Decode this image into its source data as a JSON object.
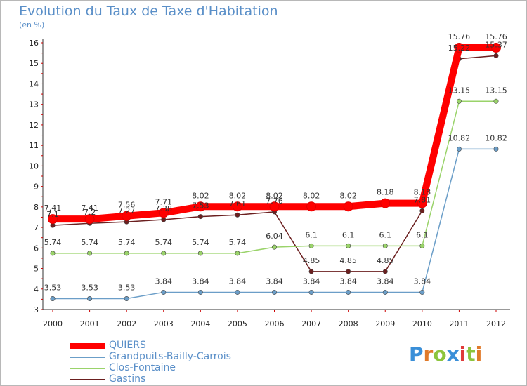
{
  "title": "Evolution du Taux de Taxe d'Habitation",
  "subtitle": "(en %)",
  "logo": {
    "text": "Proxiti",
    "letters": [
      "P",
      "r",
      "o",
      "x",
      "i",
      "t",
      "i"
    ],
    "colors": [
      "#3a8fd8",
      "#e07a2a",
      "#8cc43c",
      "#3a8fd8",
      "#e03a3a",
      "#8cc43c",
      "#e07a2a"
    ]
  },
  "chart_data": {
    "type": "line",
    "title": "Evolution du Taux de Taxe d'Habitation",
    "ylabel": "(en %)",
    "xlabel": "",
    "ylim": [
      3,
      16
    ],
    "yticks": [
      "3",
      "4",
      "5",
      "6",
      "7",
      "8",
      "9",
      "10",
      "11",
      "12",
      "13",
      "14",
      "15",
      "16"
    ],
    "categories": [
      "2000",
      "2001",
      "2002",
      "2003",
      "2004",
      "2005",
      "2006",
      "2007",
      "2008",
      "2009",
      "2010",
      "2011",
      "2012"
    ],
    "series": [
      {
        "name": "QUIERS",
        "color": "#ff0000",
        "values": [
          7.41,
          7.41,
          7.56,
          7.71,
          8.02,
          8.02,
          8.02,
          8.02,
          8.02,
          8.18,
          8.18,
          15.76,
          15.76
        ],
        "labels": [
          "7.41",
          "7.41",
          "7.56",
          "7.71",
          "8.02",
          "8.02",
          "8.02",
          "8.02",
          "8.02",
          "8.18",
          "8.18",
          "15.76",
          "15.76"
        ]
      },
      {
        "name": "Grandpuits-Bailly-Carrois",
        "color": "#6b9ec8",
        "values": [
          3.53,
          3.53,
          3.53,
          3.84,
          3.84,
          3.84,
          3.84,
          3.84,
          3.84,
          3.84,
          3.84,
          10.82,
          10.82
        ],
        "labels": [
          "3.53",
          "3.53",
          "3.53",
          "3.84",
          "3.84",
          "3.84",
          "3.84",
          "3.84",
          "3.84",
          "3.84",
          "3.84",
          "10.82",
          "10.82"
        ]
      },
      {
        "name": "Clos-Fontaine",
        "color": "#9ad36a",
        "values": [
          5.74,
          5.74,
          5.74,
          5.74,
          5.74,
          5.74,
          6.04,
          6.1,
          6.1,
          6.1,
          6.1,
          13.15,
          13.15
        ],
        "labels": [
          "5.74",
          "5.74",
          "5.74",
          "5.74",
          "5.74",
          "5.74",
          "6.04",
          "6.1",
          "6.1",
          "6.1",
          "6.1",
          "13.15",
          "13.15"
        ]
      },
      {
        "name": "Gastins",
        "color": "#6b1f1f",
        "values": [
          7.1,
          7.2,
          7.27,
          7.38,
          7.53,
          7.61,
          7.76,
          4.85,
          4.85,
          4.85,
          7.81,
          15.22,
          15.37
        ],
        "labels": [
          "7.1",
          "7.2",
          "7.27",
          "7.38",
          "7.53",
          "7.61",
          "7.76",
          "4.85",
          "4.85",
          "4.85",
          "7.81",
          "15.22",
          "15.37"
        ]
      }
    ]
  }
}
